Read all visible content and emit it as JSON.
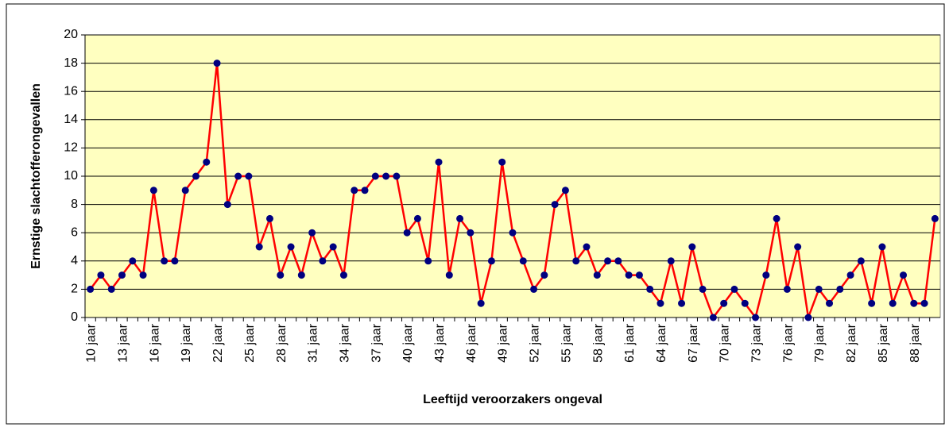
{
  "chart_data": {
    "type": "line",
    "x_label": "Leeftijd veroorzakers ongeval",
    "y_label": "Ernstige slachtofferongevallen",
    "categories": [
      "10 jaar",
      null,
      null,
      "13 jaar",
      null,
      null,
      "16 jaar",
      null,
      null,
      "19 jaar",
      null,
      null,
      "22 jaar",
      null,
      null,
      "25 jaar",
      null,
      null,
      "28 jaar",
      null,
      null,
      "31 jaar",
      null,
      null,
      "34 jaar",
      null,
      null,
      "37 jaar",
      null,
      null,
      "40 jaar",
      null,
      null,
      "43 jaar",
      null,
      null,
      "46 jaar",
      null,
      null,
      "49 jaar",
      null,
      null,
      "52 jaar",
      null,
      null,
      "55 jaar",
      null,
      null,
      "58 jaar",
      null,
      null,
      "61 jaar",
      null,
      null,
      "64 jaar",
      null,
      null,
      "67 jaar",
      null,
      null,
      "70 jaar",
      null,
      null,
      "73 jaar",
      null,
      null,
      "76 jaar",
      null,
      null,
      "79 jaar",
      null,
      null,
      "82 jaar",
      null,
      null,
      "85 jaar",
      null,
      null,
      "88 jaar",
      null,
      null
    ],
    "series": [
      {
        "color": "#ff0000",
        "marker_color": "#000080",
        "values": [
          2,
          3,
          2,
          3,
          4,
          3,
          9,
          4,
          4,
          9,
          10,
          11,
          18,
          8,
          10,
          10,
          5,
          7,
          3,
          5,
          3,
          6,
          4,
          5,
          3,
          9,
          9,
          10,
          10,
          10,
          6,
          7,
          4,
          11,
          3,
          7,
          6,
          1,
          4,
          11,
          6,
          4,
          2,
          3,
          8,
          9,
          4,
          5,
          3,
          4,
          4,
          3,
          3,
          2,
          1,
          4,
          1,
          5,
          2,
          0,
          1,
          2,
          1,
          0,
          3,
          7,
          2,
          5,
          0,
          2,
          1,
          2,
          3,
          4,
          1,
          5,
          1,
          3,
          1,
          1,
          7
        ]
      }
    ],
    "ylim": [
      0,
      20
    ],
    "yticks": [
      0,
      2,
      4,
      6,
      8,
      10,
      12,
      14,
      16,
      18,
      20
    ],
    "grid": true,
    "plot_background": "#ffffc0"
  }
}
